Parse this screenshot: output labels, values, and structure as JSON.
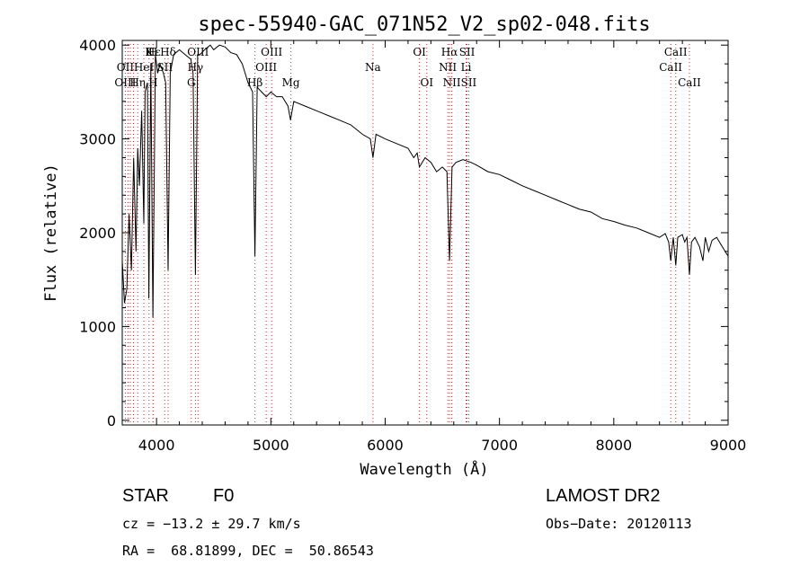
{
  "chart_data": {
    "type": "line",
    "title": "spec-55940-GAC_071N52_V2_sp02-048.fits",
    "xlabel": "Wavelength (Å)",
    "ylabel": "Flux (relative)",
    "xlim": [
      3700,
      9000
    ],
    "ylim": [
      -50,
      4050
    ],
    "x_ticks": [
      4000,
      5000,
      6000,
      7000,
      8000,
      9000
    ],
    "y_ticks": [
      0,
      1000,
      2000,
      3000,
      4000
    ],
    "grid": false,
    "series": [
      {
        "line_color": "#000000",
        "x": [
          3700,
          3720,
          3740,
          3760,
          3780,
          3800,
          3820,
          3835,
          3850,
          3870,
          3889,
          3900,
          3920,
          3933,
          3950,
          3968,
          3990,
          4010,
          4030,
          4060,
          4080,
          4101,
          4120,
          4150,
          4200,
          4250,
          4300,
          4320,
          4340,
          4360,
          4380,
          4420,
          4470,
          4500,
          4550,
          4600,
          4650,
          4700,
          4750,
          4800,
          4840,
          4861,
          4880,
          4920,
          4960,
          5000,
          5050,
          5100,
          5150,
          5172,
          5200,
          5300,
          5400,
          5500,
          5600,
          5700,
          5800,
          5870,
          5893,
          5920,
          6000,
          6100,
          6200,
          6250,
          6280,
          6300,
          6350,
          6400,
          6450,
          6500,
          6540,
          6563,
          6585,
          6620,
          6680,
          6750,
          6800,
          6900,
          7000,
          7100,
          7200,
          7300,
          7400,
          7500,
          7600,
          7700,
          7800,
          7900,
          8000,
          8100,
          8200,
          8300,
          8400,
          8450,
          8480,
          8498,
          8520,
          8542,
          8560,
          8600,
          8620,
          8640,
          8662,
          8680,
          8710,
          8750,
          8780,
          8800,
          8830,
          8860,
          8900,
          8950,
          9000
        ],
        "y": [
          1700,
          1250,
          1400,
          2200,
          1600,
          2800,
          1800,
          2900,
          2500,
          3300,
          2100,
          3500,
          3600,
          1300,
          3800,
          1100,
          3900,
          3700,
          3800,
          3700,
          3600,
          1600,
          3700,
          3900,
          3950,
          3900,
          3850,
          3700,
          1550,
          3900,
          3900,
          3950,
          4000,
          3950,
          4000,
          3980,
          3920,
          3900,
          3800,
          3600,
          3500,
          1750,
          3550,
          3500,
          3450,
          3500,
          3450,
          3450,
          3350,
          3200,
          3400,
          3350,
          3300,
          3250,
          3200,
          3150,
          3050,
          3000,
          2800,
          3050,
          3000,
          2950,
          2900,
          2800,
          2850,
          2700,
          2800,
          2750,
          2650,
          2700,
          2650,
          1700,
          2700,
          2750,
          2780,
          2750,
          2720,
          2650,
          2620,
          2560,
          2500,
          2450,
          2400,
          2350,
          2300,
          2250,
          2220,
          2150,
          2120,
          2080,
          2050,
          2000,
          1950,
          1990,
          1900,
          1700,
          1950,
          1650,
          1950,
          1980,
          1900,
          1950,
          1550,
          1900,
          1950,
          1850,
          1700,
          1950,
          1800,
          1920,
          1950,
          1850,
          1750
        ]
      }
    ],
    "line_labels": [
      {
        "label": "Hδ",
        "wave": 4101,
        "row": 0
      },
      {
        "label": "OII",
        "wave": 3727,
        "row": 1
      },
      {
        "label": "OIII",
        "wave": 3727,
        "row": 2
      },
      {
        "label": "Hε",
        "wave": 3970,
        "row": 0
      },
      {
        "label": "K",
        "wave": 3934,
        "row": 0
      },
      {
        "label": "H",
        "wave": 3969,
        "row": 0
      },
      {
        "label": "HeI",
        "wave": 3889,
        "row": 1
      },
      {
        "label": "SII",
        "wave": 4072,
        "row": 1
      },
      {
        "label": "Hη",
        "wave": 3835,
        "row": 2
      },
      {
        "label": "H",
        "wave": 3970,
        "row": 2
      },
      {
        "label": "OIII",
        "wave": 4363,
        "row": 0
      },
      {
        "label": "Hγ",
        "wave": 4340,
        "row": 1
      },
      {
        "label": "G",
        "wave": 4304,
        "row": 2
      },
      {
        "label": "OIII",
        "wave": 5007,
        "row": 0
      },
      {
        "label": "OIII",
        "wave": 4959,
        "row": 1
      },
      {
        "label": "Hβ",
        "wave": 4861,
        "row": 2
      },
      {
        "label": "Mg",
        "wave": 5175,
        "row": 2
      },
      {
        "label": "Na",
        "wave": 5893,
        "row": 1
      },
      {
        "label": "OI",
        "wave": 6300,
        "row": 0
      },
      {
        "label": "OI",
        "wave": 6364,
        "row": 2
      },
      {
        "label": "Hα",
        "wave": 6563,
        "row": 0
      },
      {
        "label": "SII",
        "wave": 6716,
        "row": 0
      },
      {
        "label": "NII",
        "wave": 6548,
        "row": 1
      },
      {
        "label": "Li",
        "wave": 6708,
        "row": 1
      },
      {
        "label": "NII",
        "wave": 6583,
        "row": 2
      },
      {
        "label": "SII",
        "wave": 6731,
        "row": 2
      },
      {
        "label": "CaII",
        "wave": 8542,
        "row": 0
      },
      {
        "label": "CaII",
        "wave": 8498,
        "row": 1
      },
      {
        "label": "CaII",
        "wave": 8662,
        "row": 2
      }
    ],
    "line_waves": [
      3727,
      3750,
      3771,
      3798,
      3835,
      3889,
      3934,
      3969,
      3970,
      4072,
      4101,
      4304,
      4340,
      4363,
      4861,
      4959,
      5007,
      5175,
      5893,
      6300,
      6364,
      6548,
      6563,
      6583,
      6708,
      6716,
      6731,
      8498,
      8542,
      8662
    ]
  },
  "info": {
    "object_type": "STAR",
    "subclass": "F0",
    "survey": "LAMOST DR2",
    "cz": "cz = −13.2 ± 29.7 km/s",
    "obs_date": "Obs−Date: 20120113",
    "coords": "RA =  68.81899, DEC =  50.86543"
  }
}
